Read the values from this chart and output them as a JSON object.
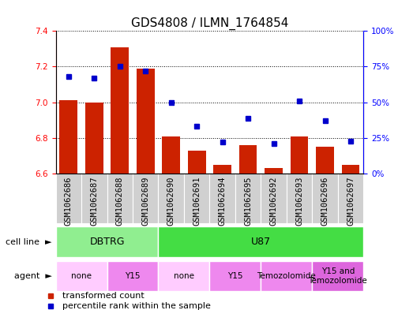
{
  "title": "GDS4808 / ILMN_1764854",
  "samples": [
    "GSM1062686",
    "GSM1062687",
    "GSM1062688",
    "GSM1062689",
    "GSM1062690",
    "GSM1062691",
    "GSM1062694",
    "GSM1062695",
    "GSM1062692",
    "GSM1062693",
    "GSM1062696",
    "GSM1062697"
  ],
  "red_values": [
    7.01,
    7.0,
    7.31,
    7.19,
    6.81,
    6.73,
    6.65,
    6.76,
    6.63,
    6.81,
    6.75,
    6.65
  ],
  "blue_values": [
    68,
    67,
    75,
    72,
    50,
    33,
    22,
    39,
    21,
    51,
    37,
    23
  ],
  "ylim_left": [
    6.6,
    7.4
  ],
  "ylim_right": [
    0,
    100
  ],
  "yticks_left": [
    6.6,
    6.8,
    7.0,
    7.2,
    7.4
  ],
  "yticks_right": [
    0,
    25,
    50,
    75,
    100
  ],
  "bar_color": "#cc2200",
  "dot_color": "#0000cc",
  "cell_lines": [
    {
      "label": "DBTRG",
      "start": 0,
      "end": 4,
      "color": "#90ee90"
    },
    {
      "label": "U87",
      "start": 4,
      "end": 12,
      "color": "#44dd44"
    }
  ],
  "agents": [
    {
      "label": "none",
      "start": 0,
      "end": 2,
      "color": "#ffccff"
    },
    {
      "label": "Y15",
      "start": 2,
      "end": 4,
      "color": "#ee88ee"
    },
    {
      "label": "none",
      "start": 4,
      "end": 6,
      "color": "#ffccff"
    },
    {
      "label": "Y15",
      "start": 6,
      "end": 8,
      "color": "#ee88ee"
    },
    {
      "label": "Temozolomide",
      "start": 8,
      "end": 10,
      "color": "#ee88ee"
    },
    {
      "label": "Y15 and\nTemozolomide",
      "start": 10,
      "end": 12,
      "color": "#dd66dd"
    }
  ],
  "legend_items": [
    {
      "label": "transformed count",
      "color": "#cc2200"
    },
    {
      "label": "percentile rank within the sample",
      "color": "#0000cc"
    }
  ],
  "title_fontsize": 11,
  "tick_fontsize": 7.5
}
